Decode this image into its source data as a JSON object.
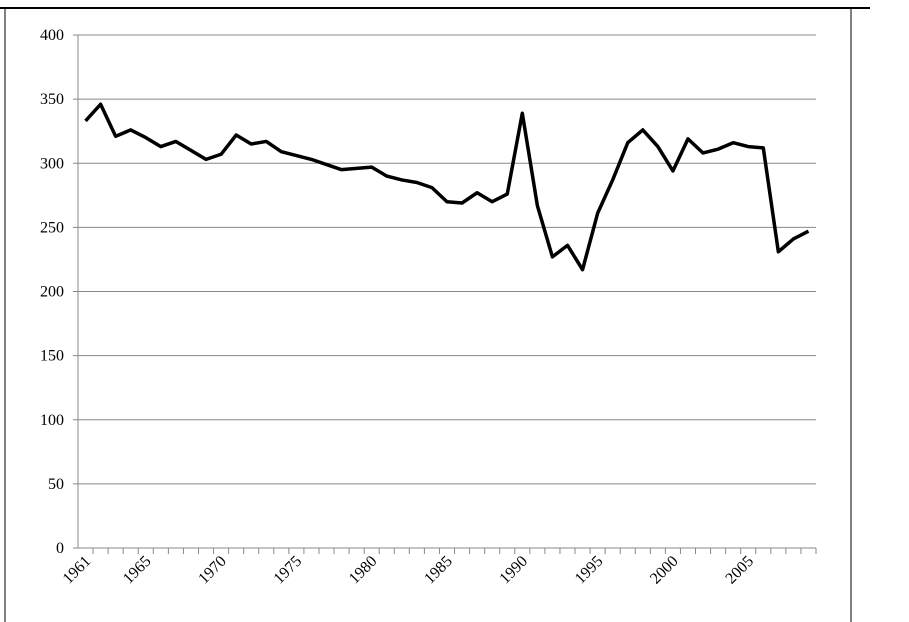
{
  "chart_data": {
    "type": "line",
    "x": [
      1961,
      1962,
      1963,
      1964,
      1965,
      1966,
      1967,
      1968,
      1969,
      1970,
      1971,
      1972,
      1973,
      1974,
      1975,
      1976,
      1977,
      1978,
      1979,
      1980,
      1981,
      1982,
      1983,
      1984,
      1985,
      1986,
      1987,
      1988,
      1989,
      1990,
      1991,
      1992,
      1993,
      1994,
      1995,
      1996,
      1997,
      1998,
      1999,
      2000,
      2001,
      2002,
      2003,
      2004,
      2005,
      2006,
      2007,
      2008,
      2009
    ],
    "values": [
      333,
      346,
      321,
      326,
      320,
      313,
      317,
      310,
      303,
      307,
      322,
      315,
      317,
      309,
      306,
      303,
      299,
      295,
      296,
      297,
      290,
      287,
      285,
      281,
      270,
      269,
      277,
      270,
      276,
      339,
      267,
      227,
      236,
      217,
      261,
      287,
      316,
      326,
      313,
      294,
      319,
      308,
      311,
      316,
      313,
      312,
      231,
      241,
      247
    ],
    "color": "#000000",
    "xlim": [
      1960.5,
      2009.5
    ],
    "xticks": [
      1961,
      1965,
      1970,
      1975,
      1980,
      1985,
      1990,
      1995,
      2000,
      2005
    ],
    "ylim": [
      0,
      400
    ],
    "yticks": [
      0,
      50,
      100,
      150,
      200,
      250,
      300,
      350,
      400
    ],
    "grid": true
  }
}
